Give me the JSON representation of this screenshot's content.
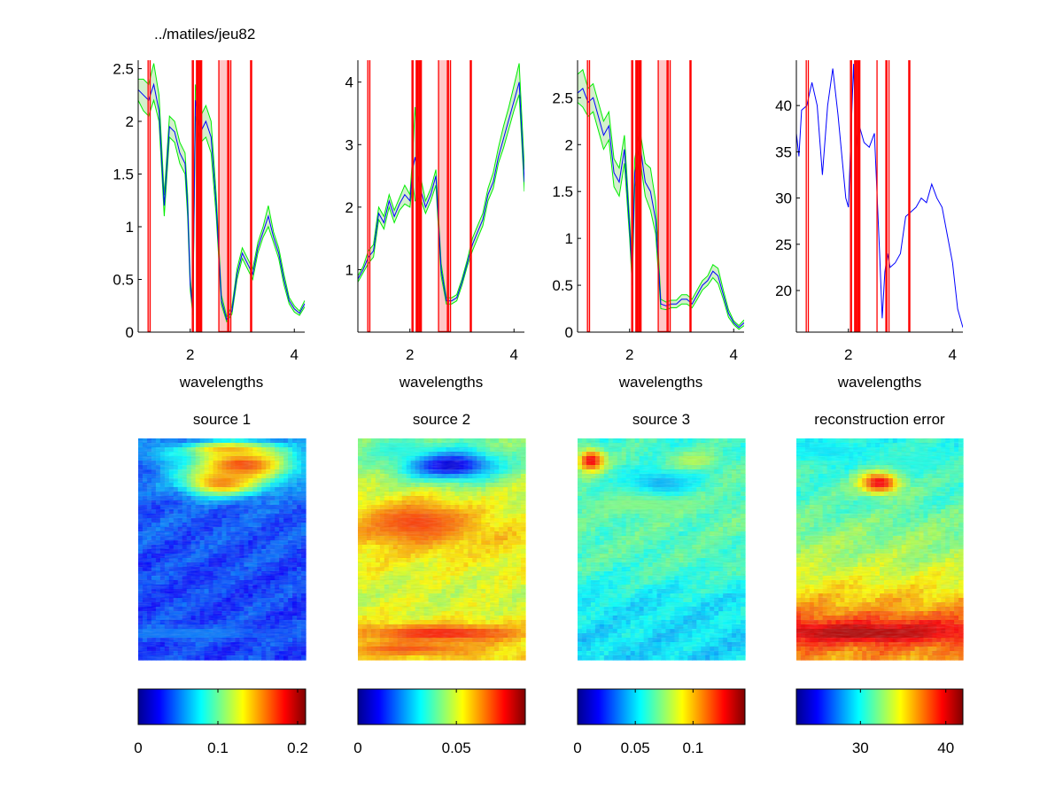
{
  "figure_title": "../matiles/jeu82",
  "colors": {
    "mean_line": "#0000ff",
    "envelope": "#00ee00",
    "envelope_fill": "#d4f0cc",
    "band_line": "#ff0000",
    "band_fill": "#ffc8c8",
    "axes": "#000000"
  },
  "colormap": "jet",
  "bands": [
    [
      1.19,
      1.23
    ],
    [
      2.04,
      2.06
    ],
    [
      2.12,
      2.14
    ],
    [
      2.16,
      2.18
    ],
    [
      2.2,
      2.22
    ],
    [
      2.55,
      2.72
    ],
    [
      2.74,
      2.78
    ],
    [
      3.16,
      3.18
    ]
  ],
  "chart_data": [
    {
      "type": "line",
      "title": "",
      "xlabel": "wavelengths",
      "ylabel": "",
      "xlim": [
        1,
        4.2
      ],
      "ylim": [
        0,
        2.58
      ],
      "xticks": [
        2,
        4
      ],
      "yticks": [
        0,
        0.5,
        1,
        1.5,
        2,
        2.5
      ],
      "x": [
        1.0,
        1.1,
        1.2,
        1.3,
        1.4,
        1.5,
        1.6,
        1.7,
        1.8,
        1.9,
        1.95,
        2.0,
        2.05,
        2.1,
        2.2,
        2.3,
        2.4,
        2.5,
        2.6,
        2.7,
        2.8,
        2.9,
        3.0,
        3.1,
        3.2,
        3.3,
        3.4,
        3.5,
        3.6,
        3.7,
        3.8,
        3.9,
        4.0,
        4.1,
        4.2
      ],
      "series": [
        {
          "values": [
            2.3,
            2.25,
            2.2,
            2.35,
            2.1,
            1.2,
            1.95,
            1.9,
            1.7,
            1.6,
            1.2,
            0.45,
            0.2,
            2.2,
            1.9,
            2.0,
            1.85,
            1.2,
            0.3,
            0.12,
            0.2,
            0.55,
            0.75,
            0.65,
            0.55,
            0.8,
            0.95,
            1.1,
            0.9,
            0.75,
            0.5,
            0.3,
            0.22,
            0.18,
            0.27
          ]
        },
        {
          "values": [
            2.4,
            2.4,
            2.35,
            2.55,
            2.25,
            1.3,
            2.05,
            2.0,
            1.8,
            1.7,
            1.3,
            0.5,
            0.25,
            2.35,
            2.05,
            2.15,
            2.0,
            1.3,
            0.35,
            0.15,
            0.24,
            0.6,
            0.8,
            0.7,
            0.6,
            0.85,
            1.0,
            1.2,
            0.95,
            0.8,
            0.55,
            0.33,
            0.25,
            0.2,
            0.3
          ]
        },
        {
          "values": [
            2.2,
            2.1,
            2.05,
            2.2,
            2.0,
            1.1,
            1.85,
            1.8,
            1.6,
            1.5,
            1.1,
            0.4,
            0.16,
            2.05,
            1.8,
            1.85,
            1.7,
            1.1,
            0.26,
            0.1,
            0.17,
            0.5,
            0.7,
            0.6,
            0.5,
            0.75,
            0.9,
            1.0,
            0.85,
            0.7,
            0.45,
            0.27,
            0.19,
            0.16,
            0.24
          ]
        }
      ]
    },
    {
      "type": "line",
      "title": "",
      "xlabel": "wavelengths",
      "ylabel": "",
      "xlim": [
        1,
        4.2
      ],
      "ylim": [
        0,
        4.35
      ],
      "xticks": [
        2,
        4
      ],
      "yticks": [
        1,
        2,
        3,
        4
      ],
      "x": [
        1.0,
        1.1,
        1.2,
        1.3,
        1.4,
        1.5,
        1.6,
        1.7,
        1.8,
        1.9,
        2.0,
        2.05,
        2.1,
        2.2,
        2.3,
        2.4,
        2.5,
        2.6,
        2.7,
        2.8,
        2.9,
        3.0,
        3.1,
        3.2,
        3.3,
        3.4,
        3.5,
        3.6,
        3.7,
        3.8,
        3.9,
        4.0,
        4.1,
        4.2
      ],
      "series": [
        {
          "values": [
            0.85,
            1.0,
            1.2,
            1.3,
            1.9,
            1.75,
            2.1,
            1.85,
            2.05,
            2.2,
            2.1,
            2.6,
            2.8,
            2.3,
            2.0,
            2.2,
            2.5,
            1.0,
            0.5,
            0.5,
            0.55,
            0.8,
            1.1,
            1.4,
            1.6,
            1.8,
            2.2,
            2.4,
            2.8,
            3.1,
            3.4,
            3.7,
            4.0,
            2.4
          ]
        },
        {
          "values": [
            0.9,
            1.05,
            1.3,
            1.4,
            2.0,
            1.85,
            2.2,
            1.95,
            2.15,
            2.35,
            2.2,
            2.8,
            3.6,
            2.5,
            2.1,
            2.3,
            2.6,
            1.1,
            0.55,
            0.55,
            0.6,
            0.85,
            1.15,
            1.5,
            1.7,
            1.9,
            2.3,
            2.55,
            2.95,
            3.3,
            3.6,
            3.95,
            4.3,
            2.6
          ]
        },
        {
          "values": [
            0.8,
            0.95,
            1.1,
            1.2,
            1.8,
            1.65,
            2.0,
            1.75,
            1.95,
            2.05,
            2.0,
            2.4,
            2.1,
            2.15,
            1.9,
            2.1,
            2.35,
            0.9,
            0.45,
            0.45,
            0.5,
            0.75,
            1.05,
            1.3,
            1.5,
            1.7,
            2.1,
            2.3,
            2.7,
            2.95,
            3.25,
            3.55,
            3.8,
            2.25
          ]
        }
      ]
    },
    {
      "type": "line",
      "title": "",
      "xlabel": "wavelengths",
      "ylabel": "",
      "xlim": [
        1,
        4.2
      ],
      "ylim": [
        0,
        2.9
      ],
      "xticks": [
        2,
        4
      ],
      "yticks": [
        0,
        0.5,
        1,
        1.5,
        2,
        2.5
      ],
      "x": [
        1.0,
        1.1,
        1.2,
        1.3,
        1.4,
        1.5,
        1.6,
        1.7,
        1.8,
        1.9,
        2.0,
        2.05,
        2.1,
        2.2,
        2.3,
        2.4,
        2.5,
        2.6,
        2.7,
        2.8,
        2.9,
        3.0,
        3.1,
        3.2,
        3.3,
        3.4,
        3.5,
        3.6,
        3.7,
        3.8,
        3.9,
        4.0,
        4.1,
        4.2
      ],
      "series": [
        {
          "values": [
            2.55,
            2.6,
            2.45,
            2.5,
            2.3,
            2.1,
            2.2,
            1.7,
            1.6,
            1.95,
            1.1,
            0.6,
            1.7,
            2.0,
            1.6,
            1.5,
            1.2,
            0.3,
            0.28,
            0.3,
            0.3,
            0.35,
            0.35,
            0.3,
            0.4,
            0.5,
            0.55,
            0.65,
            0.6,
            0.4,
            0.2,
            0.1,
            0.05,
            0.1
          ]
        },
        {
          "values": [
            2.75,
            2.8,
            2.6,
            2.65,
            2.45,
            2.25,
            2.35,
            1.85,
            1.75,
            2.1,
            1.2,
            0.7,
            1.85,
            2.15,
            1.8,
            1.75,
            1.4,
            0.35,
            0.32,
            0.34,
            0.34,
            0.4,
            0.4,
            0.35,
            0.45,
            0.55,
            0.6,
            0.72,
            0.68,
            0.45,
            0.24,
            0.12,
            0.07,
            0.13
          ]
        },
        {
          "values": [
            2.45,
            2.4,
            2.3,
            2.35,
            2.15,
            1.95,
            2.05,
            1.55,
            1.45,
            1.8,
            1.0,
            0.5,
            1.55,
            1.85,
            1.45,
            1.3,
            1.05,
            0.25,
            0.24,
            0.26,
            0.26,
            0.3,
            0.3,
            0.26,
            0.35,
            0.45,
            0.5,
            0.58,
            0.52,
            0.35,
            0.16,
            0.08,
            0.03,
            0.07
          ]
        }
      ]
    },
    {
      "type": "line",
      "title": "",
      "xlabel": "wavelengths",
      "ylabel": "",
      "xlim": [
        1,
        4.2
      ],
      "ylim": [
        15.5,
        44.9
      ],
      "xticks": [
        2,
        4
      ],
      "yticks": [
        20,
        25,
        30,
        35,
        40
      ],
      "x": [
        1.0,
        1.05,
        1.1,
        1.2,
        1.3,
        1.4,
        1.5,
        1.6,
        1.7,
        1.8,
        1.9,
        1.95,
        2.0,
        2.05,
        2.1,
        2.15,
        2.2,
        2.3,
        2.4,
        2.5,
        2.6,
        2.65,
        2.7,
        2.75,
        2.8,
        2.9,
        3.0,
        3.1,
        3.2,
        3.3,
        3.4,
        3.5,
        3.6,
        3.7,
        3.8,
        3.9,
        4.0,
        4.1,
        4.2
      ],
      "series": [
        {
          "values": [
            37,
            34.5,
            39.5,
            40,
            42.5,
            40,
            32.5,
            40,
            44,
            39,
            33,
            30,
            29,
            37,
            44.5,
            35,
            38,
            36,
            35.5,
            37,
            24,
            17,
            22,
            24,
            22.5,
            23,
            24,
            28,
            28.5,
            29,
            30,
            29.5,
            31.5,
            30,
            29,
            26,
            23,
            18,
            16
          ]
        }
      ]
    },
    {
      "type": "heatmap",
      "title": "source 1",
      "colormap": "jet",
      "clim": [
        0,
        0.21
      ],
      "colorbar_ticks": [
        0,
        0.1,
        0.2
      ]
    },
    {
      "type": "heatmap",
      "title": "source 2",
      "colormap": "jet",
      "clim": [
        0,
        0.085
      ],
      "colorbar_ticks": [
        0,
        0.05
      ]
    },
    {
      "type": "heatmap",
      "title": "source 3",
      "colormap": "jet",
      "clim": [
        0,
        0.145
      ],
      "colorbar_ticks": [
        0,
        0.05,
        0.1
      ]
    },
    {
      "type": "heatmap",
      "title": "reconstruction error",
      "colormap": "jet",
      "clim": [
        22.5,
        42
      ],
      "colorbar_ticks": [
        30,
        40
      ]
    }
  ]
}
